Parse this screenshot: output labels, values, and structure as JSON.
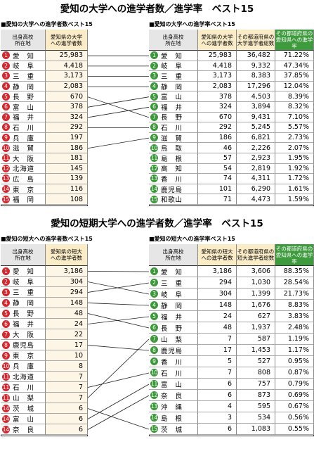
{
  "sections": [
    {
      "title": "愛知の大学への進学者数／進学率　ベスト15",
      "left": {
        "header": "■愛知の大学への進学者数ベスト15",
        "columns": [
          "出身高校\n所在地",
          "愛知県の大学\nへの進学者数"
        ],
        "rows": [
          [
            1,
            "愛知",
            "25,983"
          ],
          [
            2,
            "岐阜",
            "4,418"
          ],
          [
            3,
            "三重",
            "3,173"
          ],
          [
            4,
            "静岡",
            "2,083"
          ],
          [
            5,
            "長野",
            "670"
          ],
          [
            6,
            "富山",
            "378"
          ],
          [
            7,
            "福井",
            "324"
          ],
          [
            8,
            "石川",
            "292"
          ],
          [
            9,
            "兵庫",
            "197"
          ],
          [
            10,
            "滋賀",
            "186"
          ],
          [
            11,
            "大阪",
            "181"
          ],
          [
            12,
            "北海道",
            "145"
          ],
          [
            13,
            "広島",
            "139"
          ],
          [
            14,
            "東京",
            "116"
          ],
          [
            15,
            "福岡",
            "108"
          ]
        ]
      },
      "right": {
        "header": "■愛知の大学への進学率ベスト15",
        "columns": [
          "出身高校\n所在地",
          "愛知県の大学\nへの進学者数",
          "その都道府県の\n大学進学者総数",
          "その都道府県の\n愛知県への進学率"
        ],
        "rows": [
          [
            1,
            "愛知",
            "25,983",
            "36,482",
            "71.22%"
          ],
          [
            2,
            "岐阜",
            "4,418",
            "9,332",
            "47.34%"
          ],
          [
            3,
            "三重",
            "3,173",
            "8,383",
            "37.85%"
          ],
          [
            4,
            "静岡",
            "2,083",
            "17,296",
            "12.04%"
          ],
          [
            5,
            "富山",
            "378",
            "4,503",
            "8.39%"
          ],
          [
            6,
            "福井",
            "324",
            "3,894",
            "8.32%"
          ],
          [
            7,
            "長野",
            "670",
            "9,431",
            "7.10%"
          ],
          [
            8,
            "石川",
            "292",
            "5,245",
            "5.57%"
          ],
          [
            9,
            "滋賀",
            "186",
            "6,821",
            "2.73%"
          ],
          [
            10,
            "鳥取",
            "46",
            "2,226",
            "2.07%"
          ],
          [
            11,
            "島根",
            "57",
            "2,923",
            "1.95%"
          ],
          [
            12,
            "高知",
            "54",
            "2,819",
            "1.92%"
          ],
          [
            13,
            "香川",
            "74",
            "4,311",
            "1.72%"
          ],
          [
            14,
            "鹿児島",
            "101",
            "6,290",
            "1.61%"
          ],
          [
            15,
            "和歌山",
            "71",
            "4,473",
            "1.59%"
          ]
        ]
      }
    },
    {
      "title": "愛知の短期大学への進学者数／進学率　ベスト15",
      "left": {
        "header": "■愛知の短大への進学者数ベスト15",
        "columns": [
          "出身高校\n所在地",
          "愛知県の短大\nへの進学者数"
        ],
        "rows": [
          [
            1,
            "愛知",
            "3,186"
          ],
          [
            2,
            "岐阜",
            "304"
          ],
          [
            3,
            "三重",
            "294"
          ],
          [
            4,
            "静岡",
            "148"
          ],
          [
            5,
            "長野",
            "48"
          ],
          [
            6,
            "福井",
            "24"
          ],
          [
            7,
            "大阪",
            "22"
          ],
          [
            8,
            "鹿児島",
            "17"
          ],
          [
            9,
            "東京",
            "10"
          ],
          [
            10,
            "兵庫",
            "8"
          ],
          [
            11,
            "北海道",
            "7"
          ],
          [
            11,
            "石川",
            "7"
          ],
          [
            11,
            "山梨",
            "7"
          ],
          [
            14,
            "茨城",
            "6"
          ],
          [
            14,
            "富山",
            "6"
          ],
          [
            14,
            "奈良",
            "6"
          ]
        ]
      },
      "right": {
        "header": "■愛知の短大への進学率ベスト15",
        "columns": [
          "出身高校\n所在地",
          "愛知県の短大\nへの進学者数",
          "その都道府県の\n短大進学者総数",
          "その都道府県の\n愛知県への進学率"
        ],
        "rows": [
          [
            1,
            "愛知",
            "3,186",
            "3,606",
            "88.35%"
          ],
          [
            2,
            "三重",
            "294",
            "1,030",
            "28.54%"
          ],
          [
            3,
            "岐阜",
            "304",
            "1,399",
            "21.73%"
          ],
          [
            4,
            "静岡",
            "148",
            "1,676",
            "8.83%"
          ],
          [
            5,
            "福井",
            "24",
            "627",
            "3.83%"
          ],
          [
            6,
            "長野",
            "48",
            "1,937",
            "2.48%"
          ],
          [
            7,
            "山梨",
            "7",
            "587",
            "1.19%"
          ],
          [
            8,
            "鹿児島",
            "17",
            "1,453",
            "1.17%"
          ],
          [
            9,
            "香川",
            "5",
            "527",
            "0.95%"
          ],
          [
            10,
            "石川",
            "7",
            "808",
            "0.87%"
          ],
          [
            11,
            "富山",
            "6",
            "757",
            "0.79%"
          ],
          [
            12,
            "奈良",
            "6",
            "873",
            "0.69%"
          ],
          [
            13,
            "沖縄",
            "4",
            "595",
            "0.67%"
          ],
          [
            14,
            "島根",
            "3",
            "534",
            "0.56%"
          ],
          [
            15,
            "茨城",
            "6",
            "1,083",
            "0.55%"
          ]
        ]
      }
    }
  ]
}
